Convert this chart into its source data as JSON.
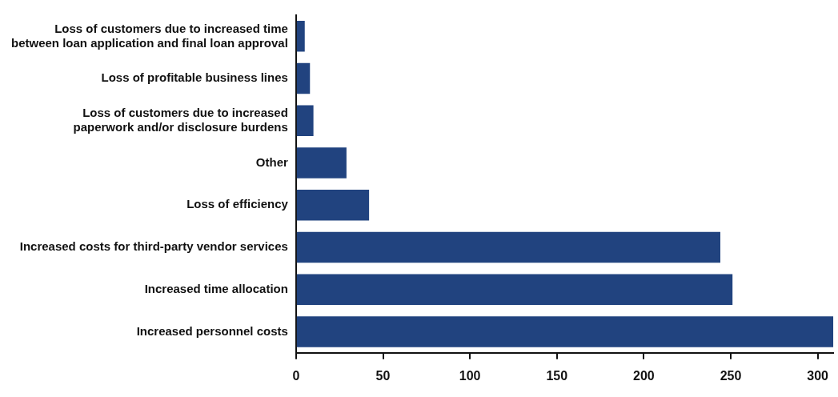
{
  "chart_data": {
    "type": "bar",
    "orientation": "horizontal",
    "categories": [
      "Loss of customers due to increased time\nbetween loan application and final loan approval",
      "Loss of profitable business lines",
      "Loss of customers due to increased\npaperwork and/or disclosure burdens",
      "Other",
      "Loss of efficiency",
      "Increased costs for third-party vendor services",
      "Increased time allocation",
      "Increased personnel costs"
    ],
    "values": [
      5,
      8,
      10,
      29,
      42,
      244,
      251,
      309
    ],
    "color": "#21437f",
    "xlim": [
      0,
      309
    ],
    "xticks": [
      0,
      50,
      100,
      150,
      200,
      250,
      300
    ],
    "grid": false,
    "legend": false
  }
}
